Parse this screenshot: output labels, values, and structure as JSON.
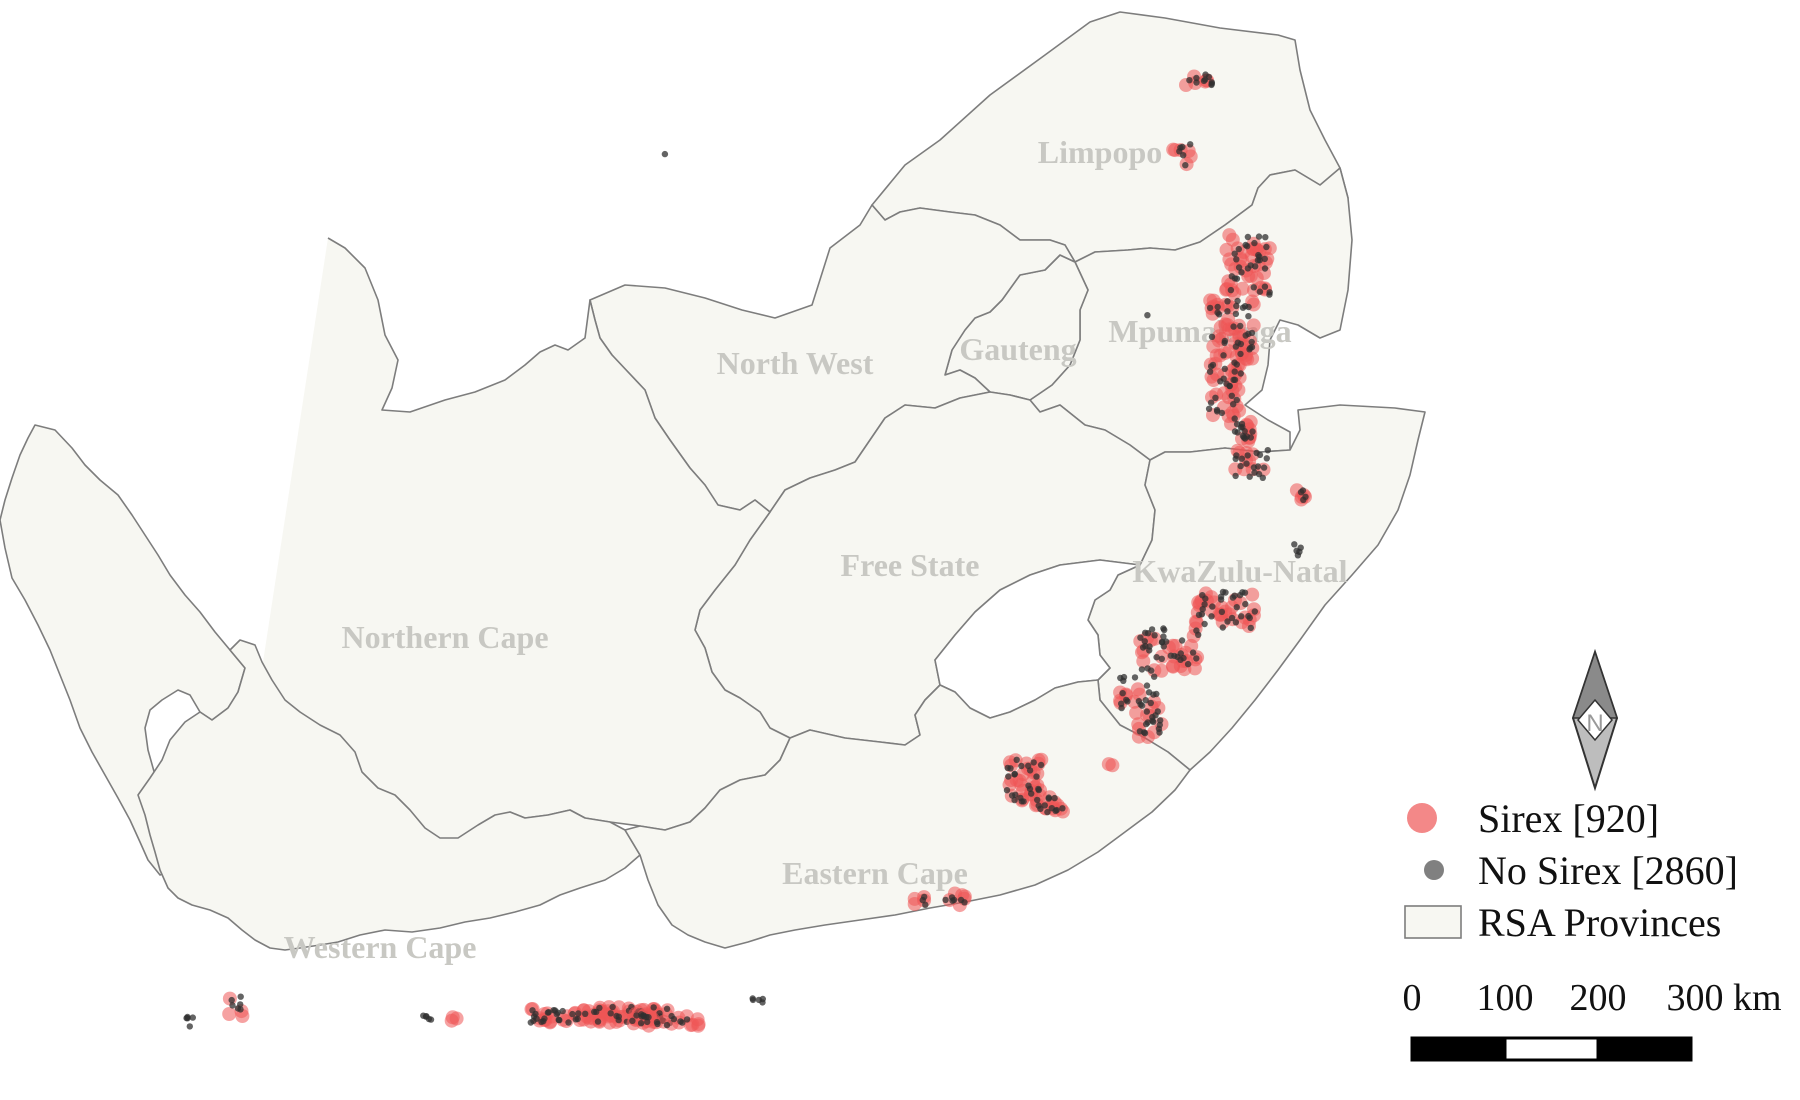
{
  "provinces": [
    {
      "key": "limpopo",
      "name": "Limpopo"
    },
    {
      "key": "mpumalanga",
      "name": "Mpumalanga"
    },
    {
      "key": "gauteng",
      "name": "Gauteng"
    },
    {
      "key": "north_west",
      "name": "North West"
    },
    {
      "key": "free_state",
      "name": "Free State"
    },
    {
      "key": "kwazulu_natal",
      "name": "KwaZulu-Natal"
    },
    {
      "key": "northern_cape",
      "name": "Northern Cape"
    },
    {
      "key": "eastern_cape",
      "name": "Eastern Cape"
    },
    {
      "key": "western_cape",
      "name": "Western Cape"
    }
  ],
  "legend": {
    "sirex": "Sirex [920]",
    "no_sirex": "No Sirex [2860]",
    "provinces": "RSA Provinces"
  },
  "colors": {
    "sirex": "#ee5555",
    "no_sirex": "#303030",
    "province_fill": "#f7f7f2",
    "province_stroke": "#7d7d7d"
  },
  "north_arrow": {
    "letter": "N"
  },
  "scale_bar": {
    "labels": [
      "0",
      "100",
      "200",
      "300 km"
    ]
  }
}
